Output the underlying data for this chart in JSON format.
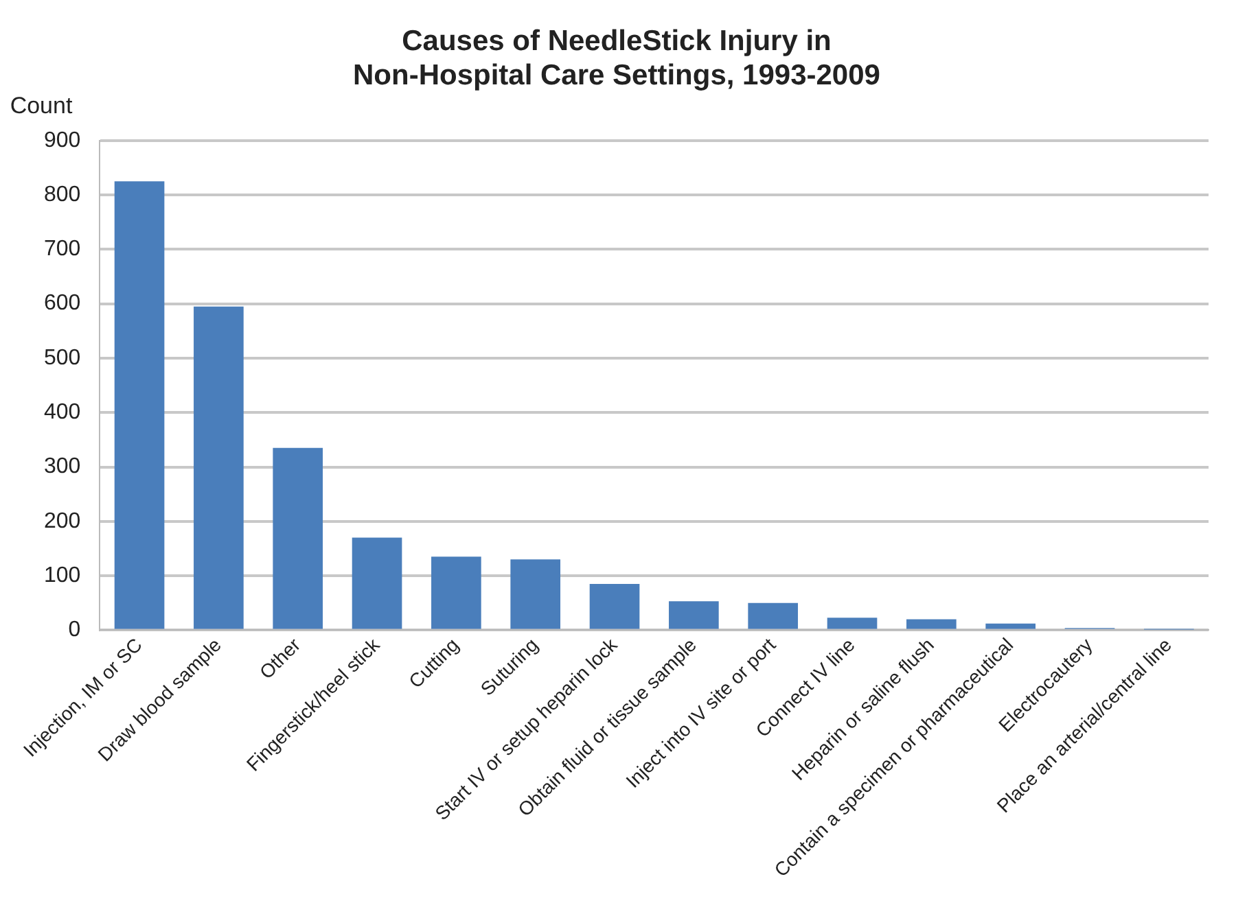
{
  "chart_data": {
    "type": "bar",
    "title": "Causes of NeedleStick Injury in Non-Hospital Care Settings, 1993-2009",
    "ylabel": "Count",
    "categories": [
      "Injection, IM or SC",
      "Draw blood sample",
      "Other",
      "Fingerstick/heel stick",
      "Cutting",
      "Suturing",
      "Start IV or setup heparin lock",
      "Obtain fluid or tissue sample",
      "Inject into IV site or port",
      "Connect IV line",
      "Heparin or saline flush",
      "Contain a specimen or pharmaceutical",
      "Electrocautery",
      "Place an arterial/central line"
    ],
    "values": [
      825,
      595,
      335,
      170,
      135,
      130,
      85,
      53,
      50,
      23,
      20,
      12,
      4,
      1
    ],
    "color": "#4a7ebb",
    "ylim": [
      0,
      900
    ],
    "yticks": [
      0,
      100,
      200,
      300,
      400,
      500,
      600,
      700,
      800,
      900
    ],
    "grid": "y",
    "legend": false
  }
}
